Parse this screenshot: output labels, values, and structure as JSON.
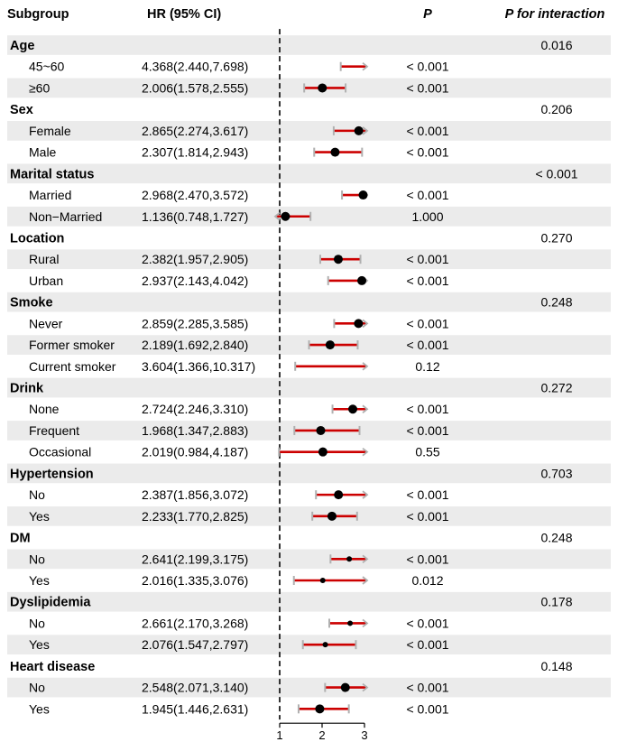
{
  "headers": {
    "subgroup": "Subgroup",
    "hr": "HR (95% CI)",
    "p": "P",
    "p_interaction": "P for interaction"
  },
  "colors": {
    "band": "#ebebeb",
    "ci_line": "#cc0000",
    "ci_cap": "#b0b0b0",
    "point": "#000000",
    "ref_line": "#333333"
  },
  "chart_data": {
    "type": "forest",
    "title": "",
    "xlabel": "",
    "ylabel": "",
    "xlim": [
      1,
      3
    ],
    "x_ticks": [
      "1",
      "2",
      "3"
    ],
    "reference_line": 1,
    "rows": [
      {
        "kind": "group",
        "label": "Age",
        "p_interaction": "0.016"
      },
      {
        "kind": "item",
        "label": "45~60",
        "hr_text": "4.368(2.440,7.698)",
        "hr": 4.368,
        "lo": 2.44,
        "hi": 7.698,
        "p": "< 0.001",
        "marker": "big"
      },
      {
        "kind": "item",
        "label": "≥60",
        "hr_text": "2.006(1.578,2.555)",
        "hr": 2.006,
        "lo": 1.578,
        "hi": 2.555,
        "p": "< 0.001",
        "marker": "big"
      },
      {
        "kind": "group",
        "label": "Sex",
        "p_interaction": "0.206"
      },
      {
        "kind": "item",
        "label": "Female",
        "hr_text": "2.865(2.274,3.617)",
        "hr": 2.865,
        "lo": 2.274,
        "hi": 3.617,
        "p": "< 0.001",
        "marker": "big"
      },
      {
        "kind": "item",
        "label": "Male",
        "hr_text": "2.307(1.814,2.943)",
        "hr": 2.307,
        "lo": 1.814,
        "hi": 2.943,
        "p": "< 0.001",
        "marker": "big"
      },
      {
        "kind": "group",
        "label": "Marital status",
        "p_interaction": "< 0.001"
      },
      {
        "kind": "item",
        "label": "Married",
        "hr_text": "2.968(2.470,3.572)",
        "hr": 2.968,
        "lo": 2.47,
        "hi": 3.572,
        "p": "< 0.001",
        "marker": "big"
      },
      {
        "kind": "item",
        "label": "Non−Married",
        "hr_text": "1.136(0.748,1.727)",
        "hr": 1.136,
        "lo": 0.748,
        "hi": 1.727,
        "p": "1.000",
        "marker": "big"
      },
      {
        "kind": "group",
        "label": "Location",
        "p_interaction": "0.270"
      },
      {
        "kind": "item",
        "label": "Rural",
        "hr_text": "2.382(1.957,2.905)",
        "hr": 2.382,
        "lo": 1.957,
        "hi": 2.905,
        "p": "< 0.001",
        "marker": "big"
      },
      {
        "kind": "item",
        "label": "Urban",
        "hr_text": "2.937(2.143,4.042)",
        "hr": 2.937,
        "lo": 2.143,
        "hi": 4.042,
        "p": "< 0.001",
        "marker": "big"
      },
      {
        "kind": "group",
        "label": "Smoke",
        "p_interaction": "0.248"
      },
      {
        "kind": "item",
        "label": "Never",
        "hr_text": "2.859(2.285,3.585)",
        "hr": 2.859,
        "lo": 2.285,
        "hi": 3.585,
        "p": "< 0.001",
        "marker": "big"
      },
      {
        "kind": "item",
        "label": "Former smoker",
        "hr_text": "2.189(1.692,2.840)",
        "hr": 2.189,
        "lo": 1.692,
        "hi": 2.84,
        "p": "< 0.001",
        "marker": "big"
      },
      {
        "kind": "item",
        "label": "Current smoker",
        "hr_text": "3.604(1.366,10.317)",
        "hr": 3.604,
        "lo": 1.366,
        "hi": 10.317,
        "p": "0.12",
        "marker": "big"
      },
      {
        "kind": "group",
        "label": "Drink",
        "p_interaction": "0.272"
      },
      {
        "kind": "item",
        "label": "None",
        "hr_text": "2.724(2.246,3.310)",
        "hr": 2.724,
        "lo": 2.246,
        "hi": 3.31,
        "p": "< 0.001",
        "marker": "big"
      },
      {
        "kind": "item",
        "label": "Frequent",
        "hr_text": "1.968(1.347,2.883)",
        "hr": 1.968,
        "lo": 1.347,
        "hi": 2.883,
        "p": "< 0.001",
        "marker": "big"
      },
      {
        "kind": "item",
        "label": "Occasional",
        "hr_text": "2.019(0.984,4.187)",
        "hr": 2.019,
        "lo": 0.984,
        "hi": 4.187,
        "p": "0.55",
        "marker": "big"
      },
      {
        "kind": "group",
        "label": "Hypertension",
        "p_interaction": "0.703"
      },
      {
        "kind": "item",
        "label": "No",
        "hr_text": "2.387(1.856,3.072)",
        "hr": 2.387,
        "lo": 1.856,
        "hi": 3.072,
        "p": "< 0.001",
        "marker": "big"
      },
      {
        "kind": "item",
        "label": "Yes",
        "hr_text": "2.233(1.770,2.825)",
        "hr": 2.233,
        "lo": 1.77,
        "hi": 2.825,
        "p": "< 0.001",
        "marker": "big"
      },
      {
        "kind": "group",
        "label": "DM",
        "p_interaction": "0.248"
      },
      {
        "kind": "item",
        "label": "No",
        "hr_text": "2.641(2.199,3.175)",
        "hr": 2.641,
        "lo": 2.199,
        "hi": 3.175,
        "p": "< 0.001",
        "marker": "small"
      },
      {
        "kind": "item",
        "label": "Yes",
        "hr_text": "2.016(1.335,3.076)",
        "hr": 2.016,
        "lo": 1.335,
        "hi": 3.076,
        "p": "0.012",
        "marker": "small"
      },
      {
        "kind": "group",
        "label": "Dyslipidemia",
        "p_interaction": "0.178"
      },
      {
        "kind": "item",
        "label": "No",
        "hr_text": "2.661(2.170,3.268)",
        "hr": 2.661,
        "lo": 2.17,
        "hi": 3.268,
        "p": "< 0.001",
        "marker": "small"
      },
      {
        "kind": "item",
        "label": "Yes",
        "hr_text": "2.076(1.547,2.797)",
        "hr": 2.076,
        "lo": 1.547,
        "hi": 2.797,
        "p": "< 0.001",
        "marker": "small"
      },
      {
        "kind": "group",
        "label": "Heart disease",
        "p_interaction": "0.148"
      },
      {
        "kind": "item",
        "label": "No",
        "hr_text": "2.548(2.071,3.140)",
        "hr": 2.548,
        "lo": 2.071,
        "hi": 3.14,
        "p": "< 0.001",
        "marker": "big"
      },
      {
        "kind": "item",
        "label": "Yes",
        "hr_text": "1.945(1.446,2.631)",
        "hr": 1.945,
        "lo": 1.446,
        "hi": 2.631,
        "p": "< 0.001",
        "marker": "big"
      }
    ]
  }
}
